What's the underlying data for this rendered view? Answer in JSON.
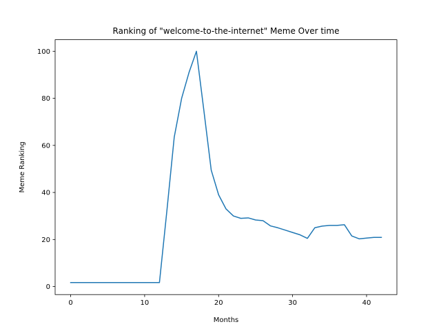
{
  "chart_data": {
    "type": "line",
    "title": "Ranking of \"welcome-to-the-internet\" Meme Over time",
    "xlabel": "Months",
    "ylabel": "Meme Ranking",
    "xlim": [
      -2.1,
      44.1
    ],
    "ylim": [
      -3.4,
      104.9
    ],
    "xticks": [
      0,
      10,
      20,
      30,
      40
    ],
    "yticks": [
      0,
      20,
      40,
      60,
      80,
      100
    ],
    "grid": false,
    "legend": "none",
    "line_color": "#1f77b4",
    "series": [
      {
        "values_x": [
          0,
          1,
          2,
          3,
          4,
          5,
          6,
          7,
          8,
          9,
          10,
          11,
          12,
          13,
          14,
          15,
          16,
          17,
          18,
          19,
          20,
          21,
          22,
          23,
          24,
          25,
          26,
          27,
          28,
          29,
          30,
          31,
          32,
          33,
          34,
          35,
          36,
          37,
          38,
          39,
          40,
          41,
          42
        ],
        "values_y": [
          1.7,
          1.7,
          1.7,
          1.7,
          1.7,
          1.7,
          1.7,
          1.7,
          1.7,
          1.7,
          1.7,
          1.7,
          1.7,
          32,
          63.5,
          80,
          91,
          100,
          75,
          49.5,
          39,
          33,
          30,
          29,
          29.2,
          28.3,
          28,
          25.8,
          25,
          24,
          23,
          22,
          20.5,
          25,
          25.7,
          26,
          26,
          26.3,
          21.5,
          20.3,
          20.6,
          20.9,
          20.9
        ]
      }
    ]
  }
}
